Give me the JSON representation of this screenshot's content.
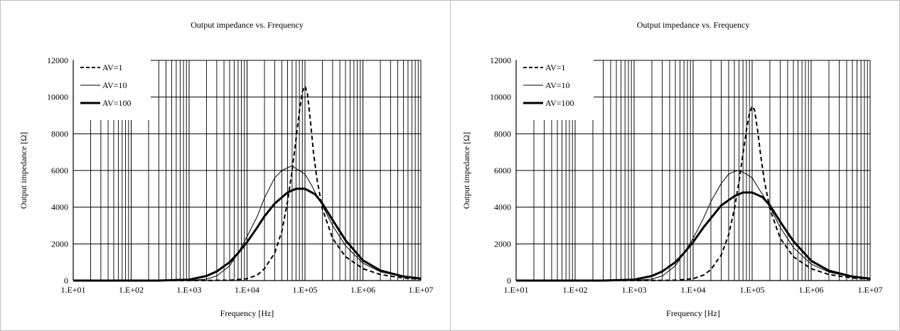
{
  "chart_data": [
    {
      "type": "line",
      "title": "Output impedance vs. Frequency",
      "xlabel": "Frequency [Hz]",
      "ylabel": "Output impedance [Ω]",
      "xscale": "log",
      "xlim": [
        10,
        10000000
      ],
      "ylim": [
        0,
        12000
      ],
      "x_ticks": [
        "1.E+01",
        "1.E+02",
        "1.E+03",
        "1.E+04",
        "1.E+05",
        "1.E+06",
        "1.E+07"
      ],
      "y_ticks": [
        "0",
        "2000",
        "4000",
        "6000",
        "8000",
        "10000",
        "12000"
      ],
      "grid": true,
      "legend_position": "top-left",
      "series": [
        {
          "name": "AV=1",
          "style": "dashed",
          "points": [
            [
              10,
              0
            ],
            [
              1000,
              0
            ],
            [
              5000,
              20
            ],
            [
              10000,
              100
            ],
            [
              15000,
              300
            ],
            [
              20000,
              650
            ],
            [
              30000,
              1500
            ],
            [
              40000,
              2700
            ],
            [
              50000,
              4300
            ],
            [
              60000,
              6000
            ],
            [
              70000,
              7700
            ],
            [
              80000,
              9200
            ],
            [
              90000,
              10300
            ],
            [
              100000,
              10600
            ],
            [
              110000,
              10200
            ],
            [
              125000,
              8600
            ],
            [
              140000,
              7000
            ],
            [
              160000,
              5600
            ],
            [
              200000,
              3900
            ],
            [
              300000,
              2300
            ],
            [
              500000,
              1300
            ],
            [
              1000000,
              650
            ],
            [
              2000000,
              330
            ],
            [
              5000000,
              140
            ],
            [
              10000000,
              80
            ]
          ]
        },
        {
          "name": "AV=10",
          "style": "thin",
          "points": [
            [
              10,
              0
            ],
            [
              500,
              0
            ],
            [
              1000,
              10
            ],
            [
              2000,
              80
            ],
            [
              3000,
              250
            ],
            [
              5000,
              800
            ],
            [
              7000,
              1500
            ],
            [
              10000,
              2400
            ],
            [
              15000,
              3500
            ],
            [
              20000,
              4500
            ],
            [
              30000,
              5600
            ],
            [
              40000,
              6000
            ],
            [
              50000,
              6150
            ],
            [
              60000,
              6250
            ],
            [
              70000,
              6100
            ],
            [
              80000,
              6000
            ],
            [
              100000,
              5800
            ],
            [
              130000,
              5200
            ],
            [
              150000,
              4800
            ],
            [
              200000,
              4100
            ],
            [
              300000,
              3000
            ],
            [
              500000,
              1900
            ],
            [
              1000000,
              950
            ],
            [
              2000000,
              480
            ],
            [
              5000000,
              200
            ],
            [
              10000000,
              110
            ]
          ]
        },
        {
          "name": "AV=100",
          "style": "thick",
          "points": [
            [
              10,
              0
            ],
            [
              300,
              0
            ],
            [
              1000,
              50
            ],
            [
              2000,
              250
            ],
            [
              3000,
              500
            ],
            [
              5000,
              1000
            ],
            [
              7000,
              1500
            ],
            [
              10000,
              2100
            ],
            [
              15000,
              2900
            ],
            [
              20000,
              3500
            ],
            [
              30000,
              4200
            ],
            [
              50000,
              4800
            ],
            [
              70000,
              5000
            ],
            [
              100000,
              5000
            ],
            [
              150000,
              4700
            ],
            [
              200000,
              4200
            ],
            [
              300000,
              3300
            ],
            [
              500000,
              2200
            ],
            [
              1000000,
              1100
            ],
            [
              2000000,
              550
            ],
            [
              5000000,
              220
            ],
            [
              10000000,
              110
            ]
          ]
        }
      ]
    },
    {
      "type": "line",
      "title": "Output impedance vs. Frequency",
      "xlabel": "Frequency [Hz]",
      "ylabel": "Output impedance [Ω]",
      "xscale": "log",
      "xlim": [
        10,
        10000000
      ],
      "ylim": [
        0,
        12000
      ],
      "x_ticks": [
        "1.E+01",
        "1.E+02",
        "1.E+03",
        "1.E+04",
        "1.E+05",
        "1.E+06",
        "1.E+07"
      ],
      "y_ticks": [
        "0",
        "2000",
        "4000",
        "6000",
        "8000",
        "10000",
        "12000"
      ],
      "grid": true,
      "legend_position": "top-left",
      "series": [
        {
          "name": "AV=1",
          "style": "dashed",
          "points": [
            [
              10,
              0
            ],
            [
              1000,
              0
            ],
            [
              5000,
              20
            ],
            [
              10000,
              100
            ],
            [
              15000,
              300
            ],
            [
              20000,
              600
            ],
            [
              30000,
              1400
            ],
            [
              40000,
              2500
            ],
            [
              50000,
              3900
            ],
            [
              60000,
              5400
            ],
            [
              70000,
              6900
            ],
            [
              80000,
              8200
            ],
            [
              90000,
              9100
            ],
            [
              100000,
              9500
            ],
            [
              110000,
              9300
            ],
            [
              125000,
              8100
            ],
            [
              140000,
              6800
            ],
            [
              160000,
              5500
            ],
            [
              200000,
              3900
            ],
            [
              300000,
              2300
            ],
            [
              500000,
              1300
            ],
            [
              1000000,
              650
            ],
            [
              2000000,
              330
            ],
            [
              5000000,
              140
            ],
            [
              10000000,
              80
            ]
          ]
        },
        {
          "name": "AV=10",
          "style": "thin",
          "points": [
            [
              10,
              0
            ],
            [
              500,
              0
            ],
            [
              1000,
              10
            ],
            [
              2000,
              80
            ],
            [
              3000,
              250
            ],
            [
              5000,
              800
            ],
            [
              7000,
              1500
            ],
            [
              10000,
              2300
            ],
            [
              15000,
              3400
            ],
            [
              20000,
              4300
            ],
            [
              30000,
              5300
            ],
            [
              40000,
              5800
            ],
            [
              50000,
              5950
            ],
            [
              60000,
              6000
            ],
            [
              70000,
              5900
            ],
            [
              80000,
              5800
            ],
            [
              100000,
              5600
            ],
            [
              130000,
              5000
            ],
            [
              150000,
              4700
            ],
            [
              200000,
              4000
            ],
            [
              300000,
              2900
            ],
            [
              500000,
              1800
            ],
            [
              1000000,
              900
            ],
            [
              2000000,
              460
            ],
            [
              5000000,
              190
            ],
            [
              10000000,
              105
            ]
          ]
        },
        {
          "name": "AV=100",
          "style": "thick",
          "points": [
            [
              10,
              0
            ],
            [
              300,
              0
            ],
            [
              1000,
              50
            ],
            [
              2000,
              250
            ],
            [
              3000,
              500
            ],
            [
              5000,
              1000
            ],
            [
              7000,
              1500
            ],
            [
              10000,
              2100
            ],
            [
              15000,
              2900
            ],
            [
              20000,
              3400
            ],
            [
              30000,
              4100
            ],
            [
              50000,
              4600
            ],
            [
              70000,
              4800
            ],
            [
              100000,
              4800
            ],
            [
              150000,
              4550
            ],
            [
              200000,
              4100
            ],
            [
              300000,
              3200
            ],
            [
              500000,
              2150
            ],
            [
              1000000,
              1080
            ],
            [
              2000000,
              540
            ],
            [
              5000000,
              215
            ],
            [
              10000000,
              108
            ]
          ]
        }
      ]
    }
  ]
}
